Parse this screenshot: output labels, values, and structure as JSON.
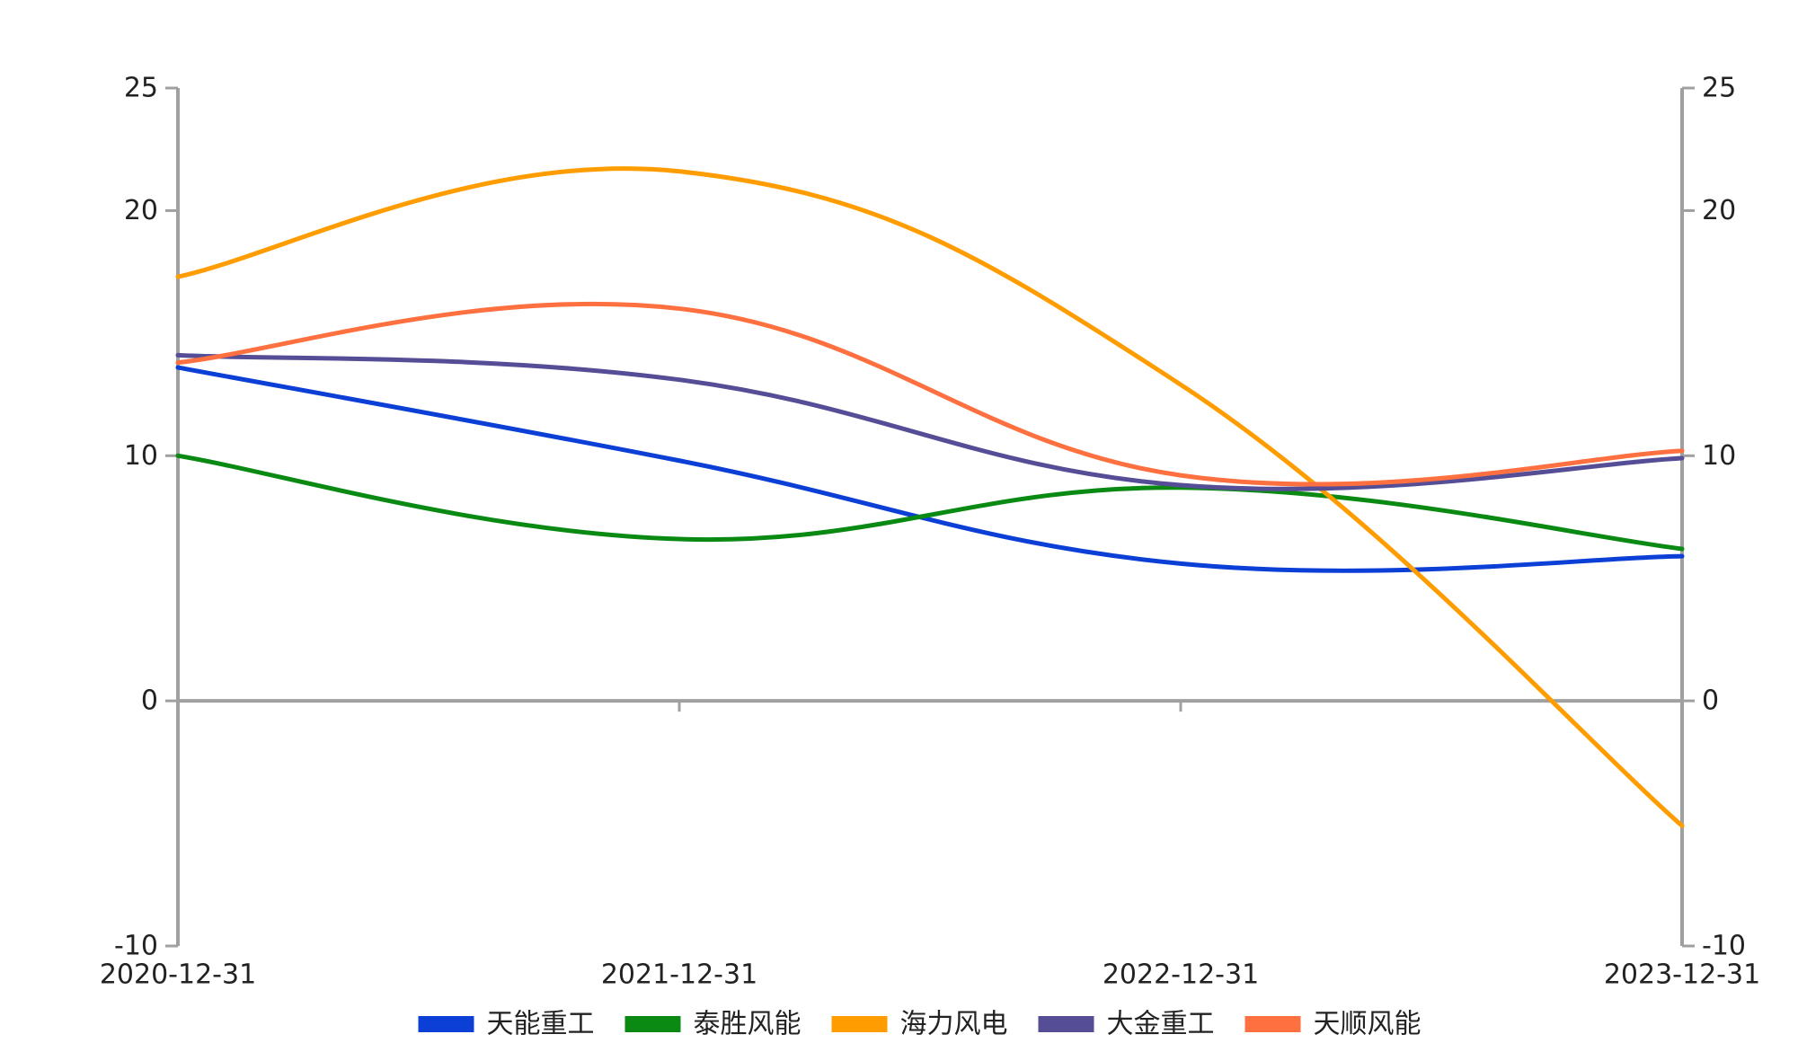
{
  "chart_data": {
    "type": "line",
    "title": "",
    "xlabel": "",
    "ylabel": "",
    "x": [
      "2020-12-31",
      "2021-12-31",
      "2022-12-31",
      "2023-12-31"
    ],
    "ylim": [
      -10,
      25
    ],
    "yticks": [
      "25",
      "20",
      "10",
      "0",
      "-10"
    ],
    "ytick_values": [
      25,
      20,
      10,
      0,
      -10
    ],
    "axes": "left and right y-axes with identical scales",
    "grid": false,
    "legend_position": "bottom",
    "series": [
      {
        "name": "天能重工",
        "color": "#0b3fd6",
        "values": [
          13.6,
          9.8,
          5.6,
          5.9
        ]
      },
      {
        "name": "泰胜风能",
        "color": "#0a8a12",
        "values": [
          10.0,
          6.6,
          8.7,
          6.2
        ]
      },
      {
        "name": "海力风电",
        "color": "#ff9c00",
        "values": [
          17.3,
          21.6,
          12.9,
          -5.1
        ]
      },
      {
        "name": "大金重工",
        "color": "#554d96",
        "values": [
          14.1,
          13.1,
          8.8,
          9.9
        ]
      },
      {
        "name": "天顺风能",
        "color": "#ff7040",
        "values": [
          13.8,
          16.0,
          9.2,
          10.2
        ]
      }
    ]
  }
}
